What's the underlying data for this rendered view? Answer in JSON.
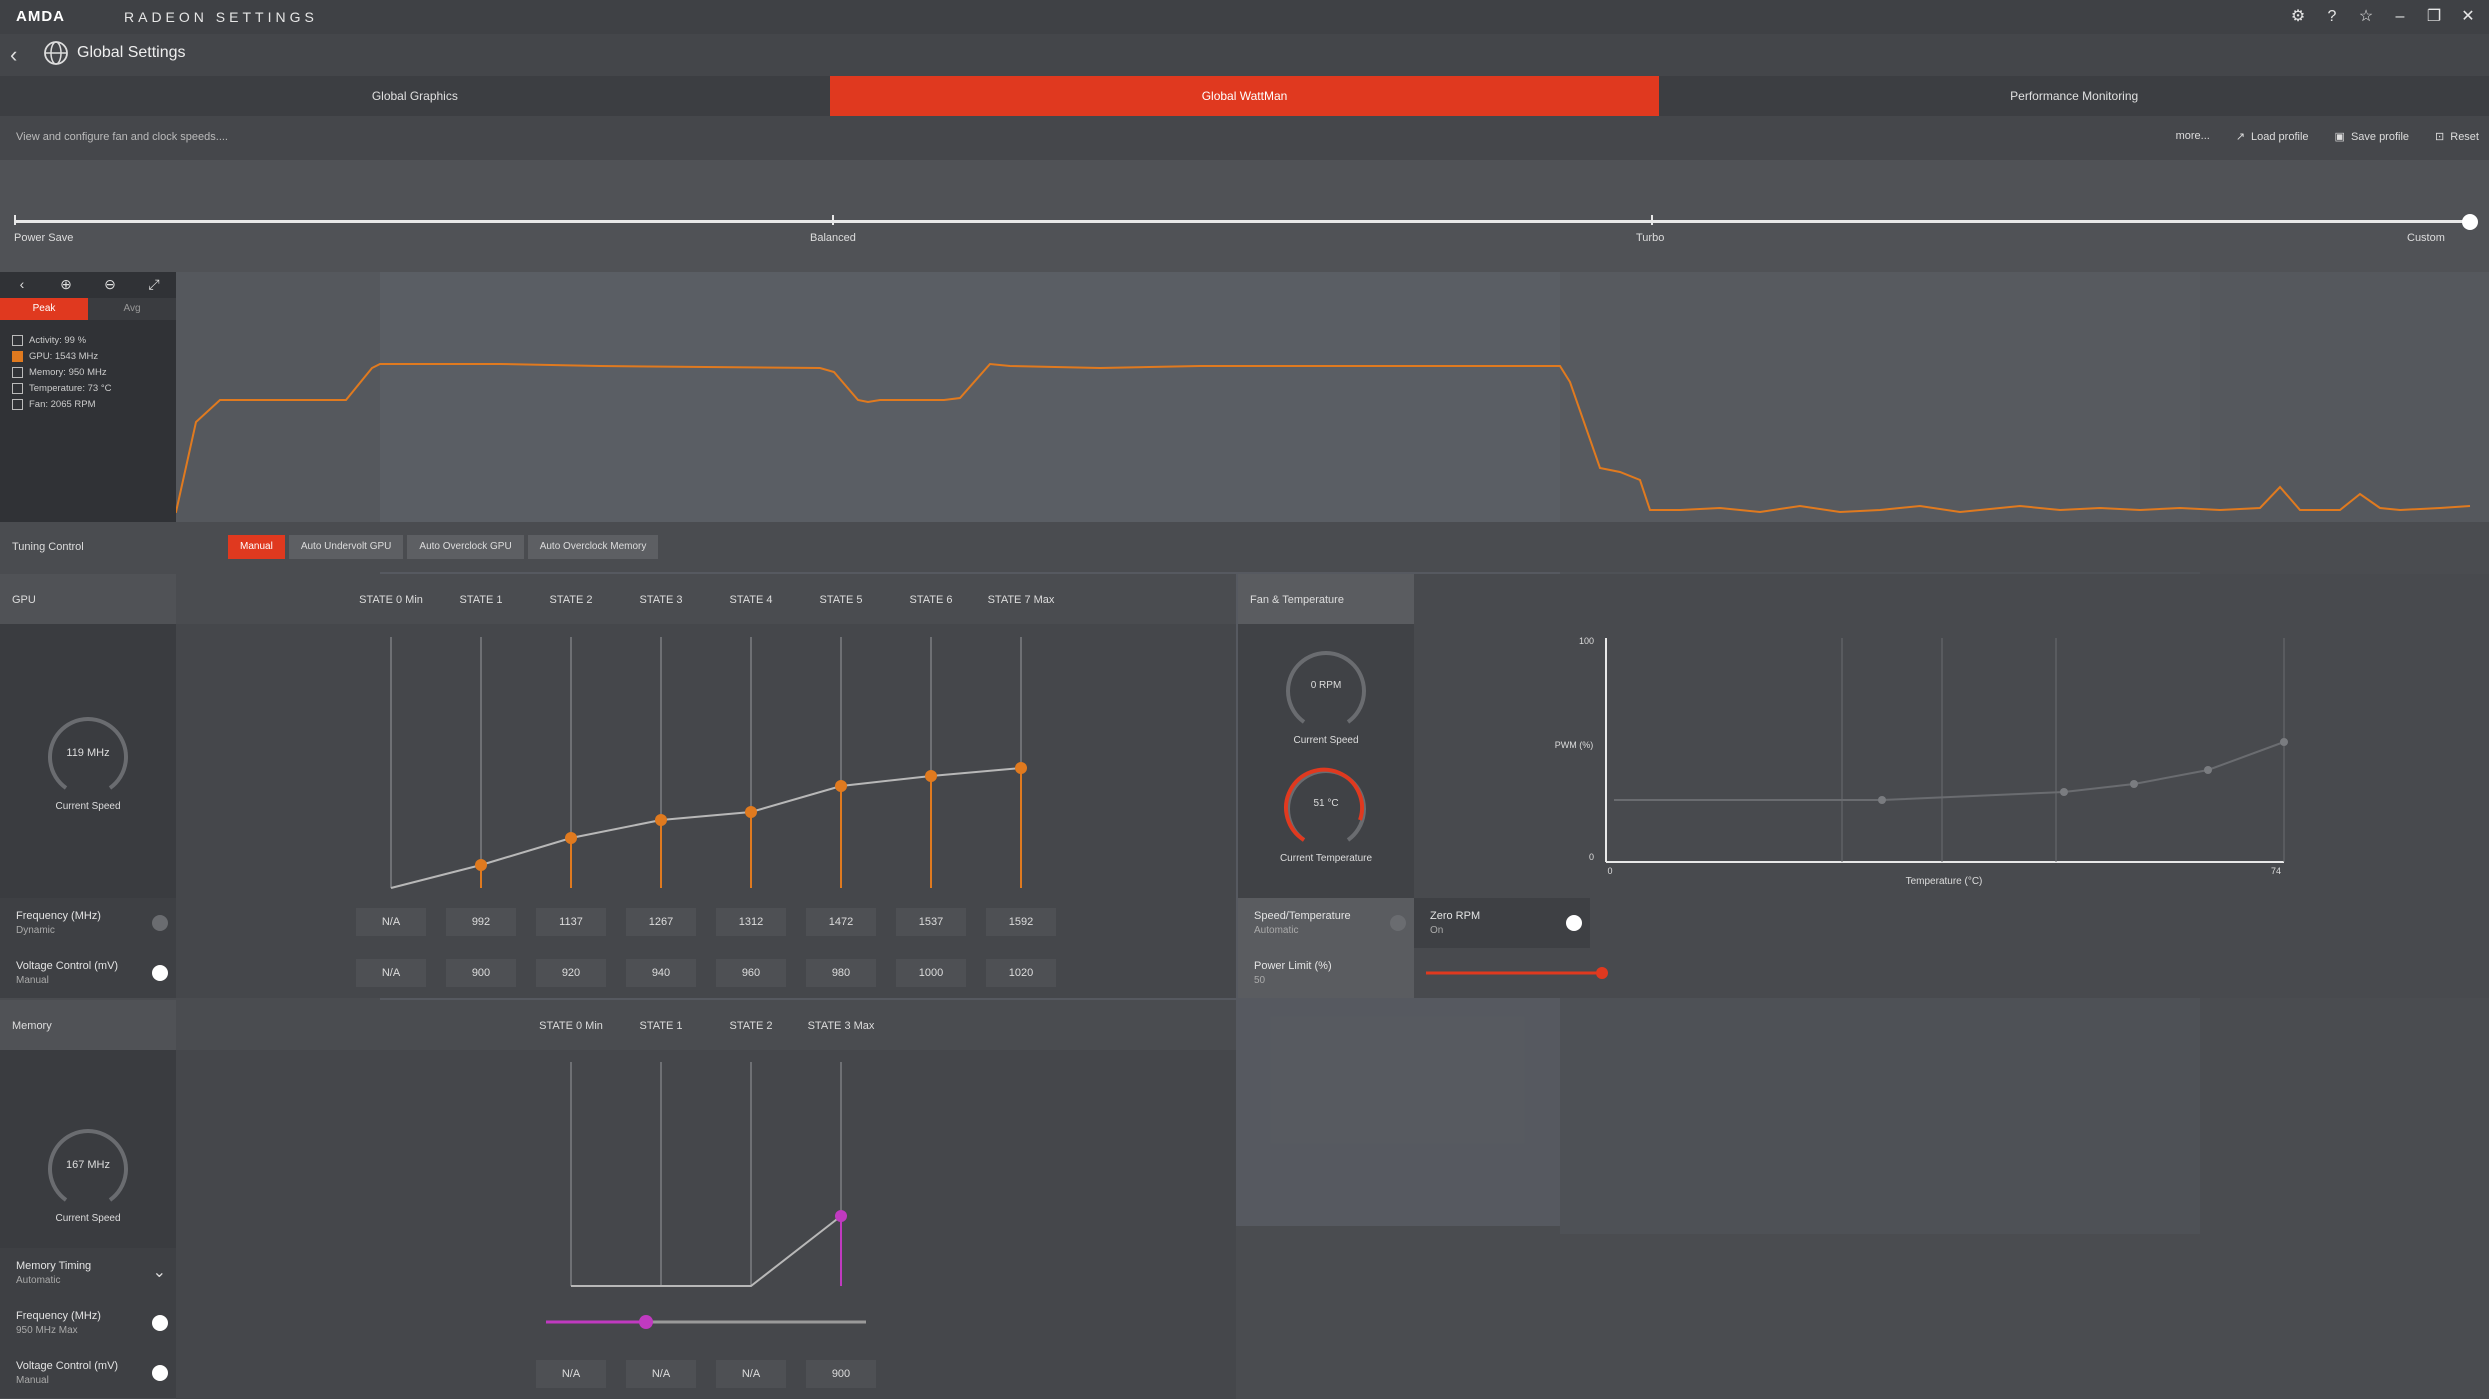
{
  "app": {
    "logo": "AMDA",
    "name": "RADEON SETTINGS"
  },
  "window_buttons": [
    "settings-icon",
    "help-icon",
    "favorite-icon",
    "minimize-icon",
    "restore-icon",
    "close-icon"
  ],
  "nav": {
    "title": "Global Settings"
  },
  "tabs": [
    {
      "label": "Global Graphics",
      "active": false
    },
    {
      "label": "Global WattMan",
      "active": true
    },
    {
      "label": "Performance Monitoring",
      "active": false
    }
  ],
  "description": "View and configure fan and clock speeds....",
  "actions": {
    "more": "more...",
    "load": "Load profile",
    "save": "Save profile",
    "reset": "Reset"
  },
  "presets": {
    "labels": [
      "Power Save",
      "Balanced",
      "Turbo",
      "Custom"
    ],
    "selected": "Custom"
  },
  "graph": {
    "modes": [
      "Peak",
      "Avg"
    ],
    "active_mode": "Peak",
    "legend": [
      {
        "label": "Activity: 99 %",
        "checked": false
      },
      {
        "label": "GPU: 1543 MHz",
        "checked": true
      },
      {
        "label": "Memory: 950 MHz",
        "checked": false
      },
      {
        "label": "Temperature: 73 °C",
        "checked": false
      },
      {
        "label": "Fan: 2065 RPM",
        "checked": false
      }
    ],
    "line_color": "#e07a1f"
  },
  "tuning": {
    "label": "Tuning Control",
    "buttons": [
      "Manual",
      "Auto Undervolt GPU",
      "Auto Overclock GPU",
      "Auto Overclock Memory"
    ],
    "active": "Manual"
  },
  "gpu": {
    "title": "GPU",
    "states": [
      "STATE 0 Min",
      "STATE 1",
      "STATE 2",
      "STATE 3",
      "STATE 4",
      "STATE 5",
      "STATE 6",
      "STATE 7 Max"
    ],
    "current_speed": "119 MHz",
    "current_speed_label": "Current Speed",
    "frequency_label": "Frequency (MHz)",
    "frequency_mode": "Dynamic",
    "frequencies": [
      "N/A",
      "992",
      "1137",
      "1267",
      "1312",
      "1472",
      "1537",
      "1592"
    ],
    "voltage_label": "Voltage Control (mV)",
    "voltage_mode": "Manual",
    "voltages": [
      "N/A",
      "900",
      "920",
      "940",
      "960",
      "980",
      "1000",
      "1020"
    ]
  },
  "memory": {
    "title": "Memory",
    "states": [
      "STATE 0 Min",
      "STATE 1",
      "STATE 2",
      "STATE 3 Max"
    ],
    "current_speed": "167 MHz",
    "current_speed_label": "Current Speed",
    "timing_label": "Memory Timing",
    "timing_mode": "Automatic",
    "frequency_label": "Frequency (MHz)",
    "frequency_mode": "950 MHz Max",
    "frequency_slider_fraction": 0.31,
    "voltage_label": "Voltage Control (mV)",
    "voltage_mode": "Manual",
    "voltages": [
      "N/A",
      "N/A",
      "N/A",
      "900"
    ]
  },
  "fan": {
    "title": "Fan & Temperature",
    "speed": "0 RPM",
    "speed_label": "Current Speed",
    "temp": "51 °C",
    "temp_label": "Current Temperature",
    "speed_temp_label": "Speed/Temperature",
    "speed_temp_mode": "Automatic",
    "zero_rpm_label": "Zero RPM",
    "zero_rpm_value": "On",
    "power_limit_label": "Power Limit (%)",
    "power_limit_value": "50",
    "chart": {
      "y_label": "PWM (%)",
      "x_label": "Temperature (°C)",
      "y_max": "100",
      "y_min": "0",
      "x_min": "0",
      "x_max": "74"
    }
  }
}
